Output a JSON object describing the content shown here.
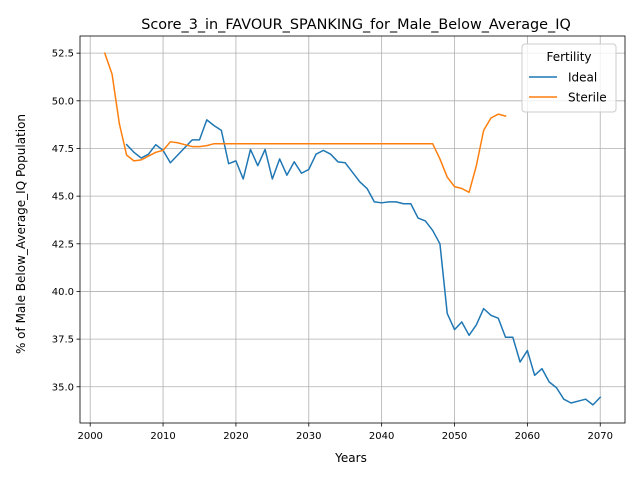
{
  "chart_data": {
    "type": "line",
    "title": "Score_3_in_FAVOUR_SPANKING_for_Male_Below_Average_IQ",
    "xlabel": "Years",
    "ylabel": "% of Male Below_Average_IQ Population",
    "xlim": [
      1998.6,
      2073.4
    ],
    "ylim": [
      33.1,
      53.4
    ],
    "xticks": [
      2000,
      2010,
      2020,
      2030,
      2040,
      2050,
      2060,
      2070
    ],
    "yticks": [
      35.0,
      37.5,
      40.0,
      42.5,
      45.0,
      47.5,
      50.0,
      52.5
    ],
    "xtick_labels": [
      "2000",
      "2010",
      "2020",
      "2030",
      "2040",
      "2050",
      "2060",
      "2070"
    ],
    "ytick_labels": [
      "35.0",
      "37.5",
      "40.0",
      "42.5",
      "45.0",
      "47.5",
      "50.0",
      "52.5"
    ],
    "grid": true,
    "legend": {
      "title": "Fertility",
      "placement": "top-right"
    },
    "series": [
      {
        "name": "Ideal",
        "color": "#1f77b4",
        "x": [
          2005,
          2006,
          2007,
          2008,
          2009,
          2010,
          2011,
          2012,
          2013,
          2014,
          2015,
          2016,
          2017,
          2018,
          2019,
          2020,
          2021,
          2022,
          2023,
          2024,
          2025,
          2026,
          2027,
          2028,
          2029,
          2030,
          2031,
          2032,
          2033,
          2034,
          2035,
          2036,
          2037,
          2038,
          2039,
          2040,
          2041,
          2042,
          2043,
          2044,
          2045,
          2046,
          2047,
          2048,
          2049,
          2050,
          2051,
          2052,
          2053,
          2054,
          2055,
          2056,
          2057,
          2058,
          2059,
          2060,
          2061,
          2062,
          2063,
          2064,
          2065,
          2066,
          2067,
          2068,
          2069,
          2070
        ],
        "y": [
          47.7,
          47.3,
          47.0,
          47.2,
          47.7,
          47.4,
          46.75,
          47.15,
          47.55,
          47.95,
          47.95,
          49.0,
          48.7,
          48.45,
          46.7,
          46.85,
          45.9,
          47.45,
          46.6,
          47.45,
          45.9,
          46.95,
          46.1,
          46.8,
          46.2,
          46.4,
          47.2,
          47.4,
          47.2,
          46.8,
          46.75,
          46.25,
          45.75,
          45.4,
          44.7,
          44.65,
          44.7,
          44.7,
          44.6,
          44.6,
          43.85,
          43.7,
          43.2,
          42.5,
          38.85,
          38.0,
          38.4,
          37.7,
          38.25,
          39.1,
          38.75,
          38.6,
          37.6,
          37.6,
          36.3,
          36.9,
          35.6,
          35.95,
          35.25,
          34.95,
          34.35,
          34.15,
          34.25,
          34.35,
          34.05,
          34.45
        ]
      },
      {
        "name": "Sterile",
        "color": "#ff7f0e",
        "x": [
          2002,
          2003,
          2004,
          2005,
          2006,
          2007,
          2008,
          2009,
          2010,
          2011,
          2012,
          2013,
          2014,
          2015,
          2016,
          2017,
          2018,
          2019,
          2020,
          2025,
          2030,
          2035,
          2040,
          2045,
          2047,
          2048,
          2049,
          2050,
          2051,
          2052,
          2053,
          2054,
          2055,
          2056,
          2057
        ],
        "y": [
          52.5,
          51.4,
          48.8,
          47.15,
          46.85,
          46.9,
          47.1,
          47.3,
          47.4,
          47.85,
          47.8,
          47.7,
          47.6,
          47.6,
          47.65,
          47.75,
          47.75,
          47.75,
          47.75,
          47.75,
          47.75,
          47.75,
          47.75,
          47.75,
          47.75,
          46.95,
          46.0,
          45.5,
          45.4,
          45.2,
          46.6,
          48.45,
          49.1,
          49.3,
          49.2
        ]
      }
    ]
  }
}
